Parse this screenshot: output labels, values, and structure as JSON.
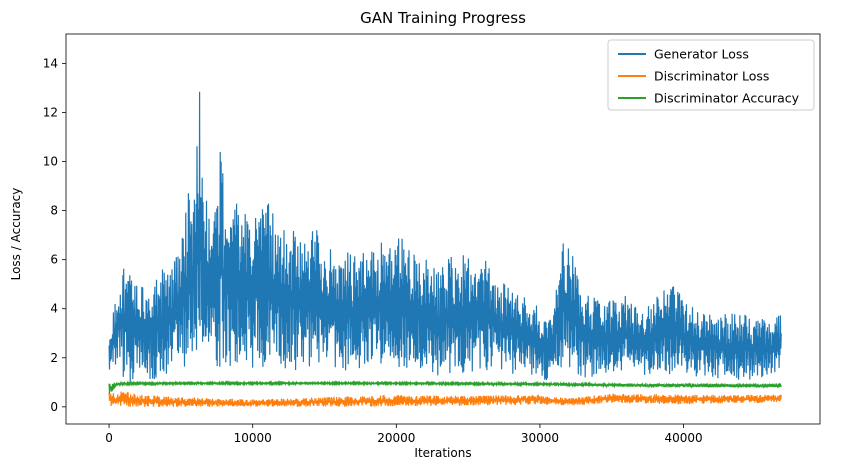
{
  "chart_data": {
    "type": "line",
    "title": "GAN Training Progress",
    "xlabel": "Iterations",
    "ylabel": "Loss / Accuracy",
    "xlim": [
      -3000,
      49500
    ],
    "ylim": [
      -0.7,
      15.2
    ],
    "xticks": [
      0,
      10000,
      20000,
      30000,
      40000
    ],
    "yticks": [
      0,
      2,
      4,
      6,
      8,
      10,
      12,
      14
    ],
    "grid": false,
    "legend_position": "top-right",
    "series": [
      {
        "name": "Generator Loss",
        "color": "#1f77b4",
        "x": [
          0,
          500,
          1000,
          1500,
          2000,
          3000,
          4000,
          5000,
          5500,
          6000,
          6300,
          6500,
          7000,
          7500,
          7800,
          8000,
          9000,
          10000,
          11000,
          12000,
          13000,
          14000,
          15000,
          16000,
          17000,
          18000,
          19000,
          20000,
          21000,
          22000,
          23000,
          24000,
          25000,
          26000,
          27000,
          28000,
          29000,
          30000,
          30500,
          31000,
          31500,
          32000,
          32500,
          33000,
          34000,
          35000,
          36000,
          37000,
          38000,
          39000,
          39500,
          40000,
          41000,
          42000,
          43000,
          44000,
          45000,
          46000,
          46800
        ],
        "upper": [
          2.5,
          4.8,
          6.1,
          5.6,
          5.0,
          5.6,
          5.6,
          6.5,
          8.7,
          9.0,
          14.5,
          8.8,
          8.5,
          8.9,
          11.8,
          8.5,
          8.3,
          8.0,
          8.6,
          7.3,
          7.2,
          7.7,
          6.8,
          6.5,
          6.2,
          6.9,
          6.7,
          7.3,
          6.3,
          6.2,
          5.6,
          6.4,
          6.1,
          6.4,
          5.3,
          5.0,
          4.6,
          4.0,
          3.6,
          4.2,
          7.0,
          6.6,
          5.8,
          4.5,
          4.6,
          4.3,
          4.7,
          3.8,
          4.4,
          5.1,
          5.2,
          4.4,
          3.9,
          3.9,
          3.8,
          3.8,
          3.7,
          3.5,
          3.8
        ],
        "lower": [
          1.3,
          1.6,
          1.1,
          1.0,
          1.2,
          1.0,
          1.3,
          1.6,
          1.5,
          1.8,
          1.0,
          1.8,
          1.4,
          1.2,
          1.4,
          1.6,
          1.5,
          1.4,
          1.6,
          1.5,
          1.5,
          1.5,
          1.8,
          1.5,
          1.4,
          1.6,
          1.5,
          1.6,
          1.5,
          1.4,
          1.2,
          1.4,
          1.3,
          1.4,
          1.4,
          1.3,
          1.3,
          1.2,
          1.0,
          1.3,
          1.5,
          1.3,
          1.3,
          1.2,
          1.2,
          1.4,
          1.3,
          1.2,
          1.2,
          1.3,
          1.4,
          1.3,
          1.1,
          1.1,
          1.0,
          1.1,
          1.1,
          1.2,
          1.4
        ]
      },
      {
        "name": "Discriminator Loss",
        "color": "#ff7f0e",
        "x": [
          0,
          500,
          1000,
          2000,
          5000,
          10000,
          15000,
          20000,
          25000,
          30000,
          32000,
          35000,
          40000,
          45000,
          46800
        ],
        "upper": [
          0.8,
          0.5,
          0.7,
          0.5,
          0.4,
          0.3,
          0.4,
          0.5,
          0.45,
          0.5,
          0.35,
          0.55,
          0.5,
          0.5,
          0.5
        ],
        "lower": [
          0.0,
          0.0,
          0.0,
          0.0,
          0.0,
          0.0,
          0.0,
          0.0,
          0.05,
          0.1,
          0.05,
          0.15,
          0.1,
          0.15,
          0.2
        ]
      },
      {
        "name": "Discriminator Accuracy",
        "color": "#2ca02c",
        "x": [
          0,
          500,
          1000,
          5000,
          10000,
          20000,
          30000,
          35000,
          40000,
          46800
        ],
        "upper": [
          1.0,
          1.0,
          1.0,
          1.0,
          1.0,
          1.0,
          0.98,
          0.95,
          0.95,
          0.95
        ],
        "lower": [
          0.4,
          0.85,
          0.9,
          0.92,
          0.92,
          0.92,
          0.88,
          0.82,
          0.8,
          0.78
        ]
      }
    ]
  }
}
